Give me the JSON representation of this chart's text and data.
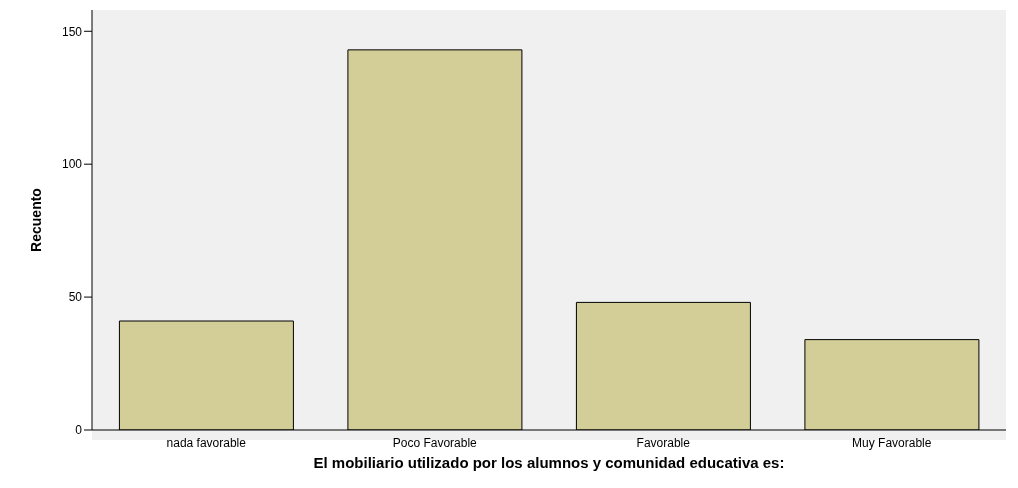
{
  "chart_data": {
    "type": "bar",
    "xlabel": "El mobiliario utilizado por los alumnos y comunidad educativa es:",
    "ylabel": "Recuento",
    "categories": [
      "nada favorable",
      "Poco Favorable",
      "Favorable",
      "Muy Favorable"
    ],
    "values": [
      41,
      143,
      48,
      34
    ],
    "color": "#d3ce97",
    "ylim": [
      0,
      158
    ],
    "yticks": [
      0,
      50,
      100,
      150
    ],
    "grid": false
  }
}
